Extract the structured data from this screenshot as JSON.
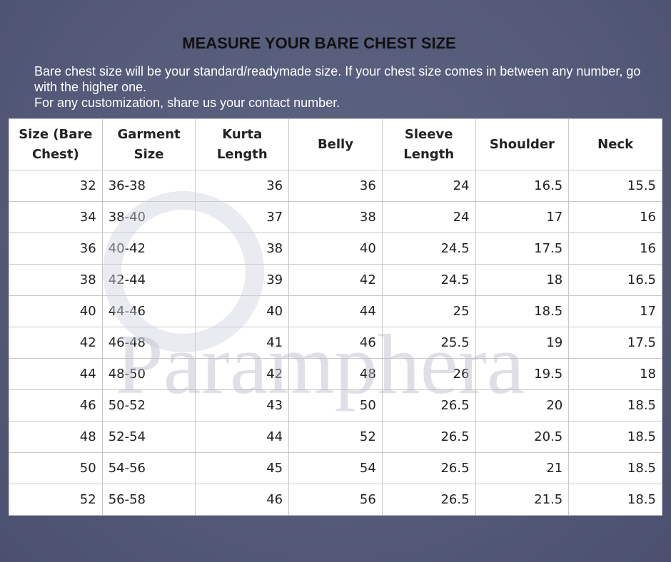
{
  "header": {
    "title": "MEASURE YOUR BARE CHEST SIZE",
    "paragraphs": [
      "Bare chest size will be your standard/readymade size. If your chest size comes in between any number, go with the higher one.",
      "For any customization, share us your contact number."
    ]
  },
  "watermark": "Paramphera",
  "table": {
    "columns": [
      "Size (Bare Chest)",
      "Garment Size",
      "Kurta Length",
      "Belly",
      "Sleeve Length",
      "Shoulder",
      "Neck"
    ],
    "rows": [
      [
        32,
        "36-38",
        36,
        36,
        24,
        16.5,
        15.5
      ],
      [
        34,
        "38-40",
        37,
        38,
        24,
        17,
        16
      ],
      [
        36,
        "40-42",
        38,
        40,
        24.5,
        17.5,
        16
      ],
      [
        38,
        "42-44",
        39,
        42,
        24.5,
        18,
        16.5
      ],
      [
        40,
        "44-46",
        40,
        44,
        25,
        18.5,
        17
      ],
      [
        42,
        "46-48",
        41,
        46,
        25.5,
        19,
        17.5
      ],
      [
        44,
        "48-50",
        42,
        48,
        26,
        19.5,
        18
      ],
      [
        46,
        "50-52",
        43,
        50,
        26.5,
        20,
        18.5
      ],
      [
        48,
        "52-54",
        44,
        52,
        26.5,
        20.5,
        18.5
      ],
      [
        50,
        "54-56",
        45,
        54,
        26.5,
        21,
        18.5
      ],
      [
        52,
        "56-58",
        46,
        56,
        26.5,
        21.5,
        18.5
      ]
    ]
  }
}
